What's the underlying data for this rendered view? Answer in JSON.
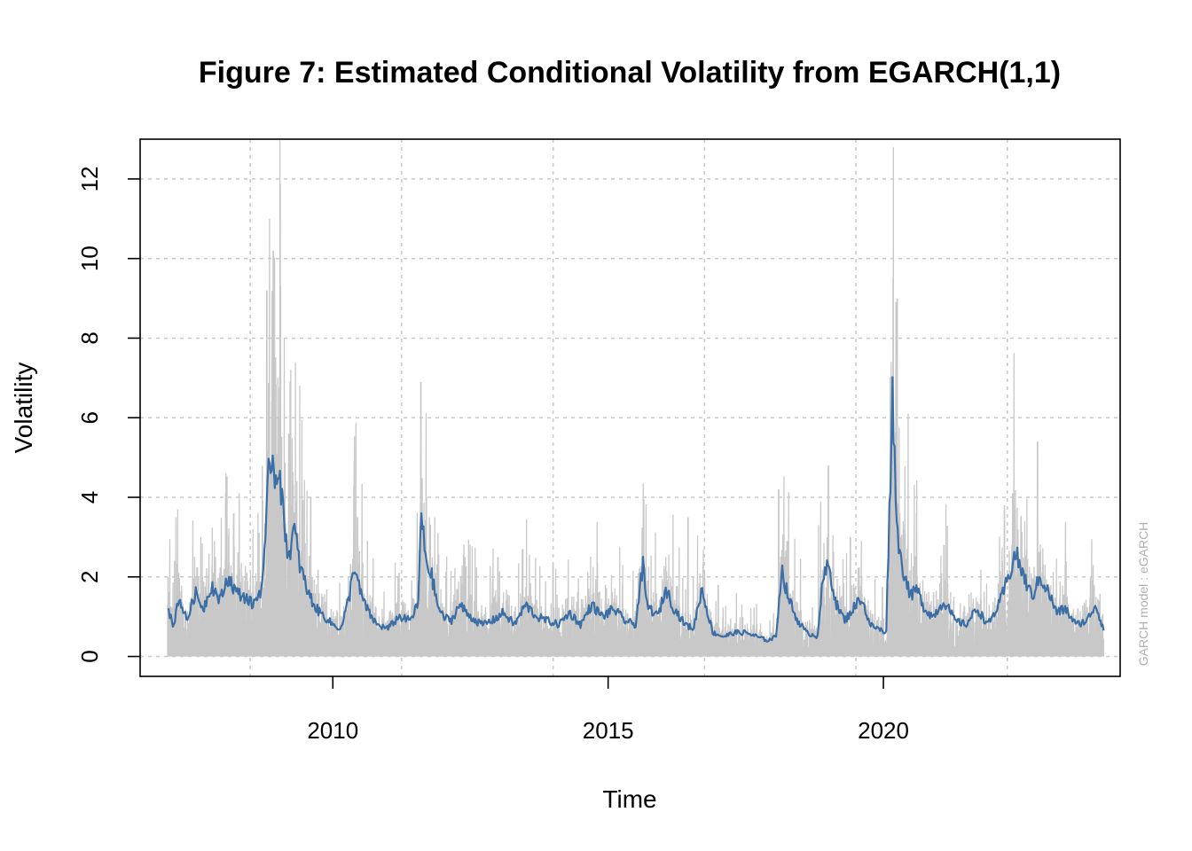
{
  "chart_data": {
    "type": "line",
    "title": "Figure 7: Estimated Conditional Volatility from EGARCH(1,1)",
    "xlabel": "Time",
    "ylabel": "Volatility",
    "watermark": "GARCH model :  eGARCH",
    "xlim": [
      2006.5,
      2024.3
    ],
    "ylim": [
      -0.5,
      13.0
    ],
    "x_ticks": [
      2010,
      2015,
      2020
    ],
    "x_tick_labels": [
      "2010",
      "2015",
      "2020"
    ],
    "y_ticks": [
      0,
      2,
      4,
      6,
      8,
      10,
      12
    ],
    "y_tick_labels": [
      "0",
      "2",
      "4",
      "6",
      "8",
      "10",
      "12"
    ],
    "grid": true,
    "grid_x": [
      2008.5,
      2011.25,
      2014.0,
      2016.75,
      2019.5,
      2022.25
    ],
    "grid_y": [
      0,
      2,
      4,
      6,
      8,
      10,
      12
    ],
    "colors": {
      "absolute_returns": "#c8c8c8",
      "conditional_volatility": "#3a6ea5",
      "grid": "#c8c8c8",
      "axis": "#000000"
    },
    "x_range": [
      2007.0,
      2024.0
    ],
    "series": [
      {
        "role": "absolute_returns",
        "color": "#c8c8c8",
        "peaks": [
          [
            2007.15,
            3.5
          ],
          [
            2007.6,
            3.0
          ],
          [
            2007.85,
            2.9
          ],
          [
            2008.2,
            3.6
          ],
          [
            2008.3,
            4.1
          ],
          [
            2008.55,
            3.2
          ],
          [
            2008.72,
            4.8
          ],
          [
            2008.8,
            9.2
          ],
          [
            2008.85,
            11.0
          ],
          [
            2008.92,
            10.2
          ],
          [
            2009.0,
            7.0
          ],
          [
            2009.05,
            9.3
          ],
          [
            2009.2,
            5.6
          ],
          [
            2009.4,
            6.8
          ],
          [
            2009.6,
            4.0
          ],
          [
            2010.38,
            4.3
          ],
          [
            2010.45,
            3.5
          ],
          [
            2011.2,
            2.1
          ],
          [
            2011.6,
            6.9
          ],
          [
            2011.7,
            4.0
          ],
          [
            2011.85,
            3.5
          ],
          [
            2012.4,
            2.5
          ],
          [
            2013.0,
            2.5
          ],
          [
            2013.45,
            2.7
          ],
          [
            2014.0,
            2.3
          ],
          [
            2014.8,
            2.4
          ],
          [
            2015.65,
            3.95
          ],
          [
            2016.05,
            2.5
          ],
          [
            2016.45,
            3.5
          ],
          [
            2017.0,
            1.8
          ],
          [
            2018.1,
            4.2
          ],
          [
            2018.25,
            2.9
          ],
          [
            2018.82,
            3.3
          ],
          [
            2019.0,
            4.8
          ],
          [
            2019.4,
            3.0
          ],
          [
            2019.6,
            2.9
          ],
          [
            2020.18,
            12.8
          ],
          [
            2020.25,
            9.0
          ],
          [
            2020.45,
            6.1
          ],
          [
            2020.6,
            3.6
          ],
          [
            2021.1,
            2.8
          ],
          [
            2022.2,
            3.8
          ],
          [
            2022.35,
            4.1
          ],
          [
            2022.5,
            3.5
          ],
          [
            2022.8,
            5.4
          ],
          [
            2023.3,
            2.3
          ],
          [
            2023.8,
            1.9
          ]
        ]
      },
      {
        "role": "conditional_volatility",
        "color": "#3a6ea5",
        "x": [
          2007.0,
          2007.1,
          2007.2,
          2007.35,
          2007.5,
          2007.65,
          2007.8,
          2007.95,
          2008.1,
          2008.25,
          2008.4,
          2008.55,
          2008.7,
          2008.78,
          2008.82,
          2008.88,
          2008.95,
          2009.02,
          2009.1,
          2009.2,
          2009.3,
          2009.4,
          2009.55,
          2009.7,
          2009.85,
          2010.0,
          2010.15,
          2010.3,
          2010.38,
          2010.5,
          2010.65,
          2010.8,
          2011.0,
          2011.2,
          2011.4,
          2011.55,
          2011.6,
          2011.7,
          2011.8,
          2011.9,
          2012.0,
          2012.15,
          2012.3,
          2012.5,
          2012.7,
          2012.9,
          2013.1,
          2013.3,
          2013.5,
          2013.7,
          2013.9,
          2014.1,
          2014.3,
          2014.5,
          2014.7,
          2014.9,
          2015.1,
          2015.3,
          2015.5,
          2015.63,
          2015.7,
          2015.9,
          2016.05,
          2016.2,
          2016.4,
          2016.55,
          2016.7,
          2016.9,
          2017.1,
          2017.3,
          2017.5,
          2017.7,
          2017.9,
          2018.05,
          2018.15,
          2018.25,
          2018.4,
          2018.6,
          2018.8,
          2018.9,
          2019.0,
          2019.15,
          2019.3,
          2019.45,
          2019.6,
          2019.75,
          2019.9,
          2020.05,
          2020.17,
          2020.22,
          2020.3,
          2020.4,
          2020.5,
          2020.6,
          2020.75,
          2020.9,
          2021.1,
          2021.3,
          2021.5,
          2021.7,
          2021.9,
          2022.1,
          2022.25,
          2022.4,
          2022.55,
          2022.7,
          2022.85,
          2023.0,
          2023.15,
          2023.3,
          2023.5,
          2023.7,
          2023.85,
          2024.0
        ],
        "y": [
          1.3,
          0.7,
          1.5,
          0.9,
          1.6,
          1.2,
          1.8,
          1.4,
          2.0,
          1.6,
          1.5,
          1.3,
          1.7,
          2.8,
          4.3,
          5.2,
          4.5,
          4.9,
          3.5,
          2.5,
          3.2,
          2.3,
          1.6,
          1.2,
          1.0,
          0.8,
          0.7,
          1.5,
          2.3,
          1.6,
          1.1,
          0.8,
          0.7,
          1.0,
          0.9,
          1.3,
          3.5,
          2.4,
          2.0,
          1.3,
          1.0,
          0.9,
          1.3,
          1.0,
          0.8,
          0.9,
          1.1,
          0.8,
          1.3,
          1.0,
          0.9,
          0.8,
          1.1,
          0.8,
          1.3,
          1.0,
          1.2,
          0.9,
          0.8,
          2.3,
          1.3,
          1.0,
          1.7,
          1.2,
          0.8,
          0.7,
          1.7,
          0.6,
          0.5,
          0.6,
          0.6,
          0.5,
          0.4,
          0.5,
          2.2,
          1.6,
          1.0,
          0.6,
          0.5,
          1.9,
          2.3,
          1.3,
          0.9,
          1.2,
          1.5,
          0.8,
          0.7,
          0.6,
          6.8,
          4.0,
          2.5,
          2.0,
          1.5,
          1.7,
          1.2,
          1.0,
          1.4,
          0.9,
          0.8,
          1.2,
          0.8,
          1.3,
          1.9,
          2.6,
          2.0,
          1.5,
          2.0,
          1.6,
          1.1,
          1.2,
          0.8,
          0.9,
          1.3,
          0.7
        ]
      }
    ]
  }
}
